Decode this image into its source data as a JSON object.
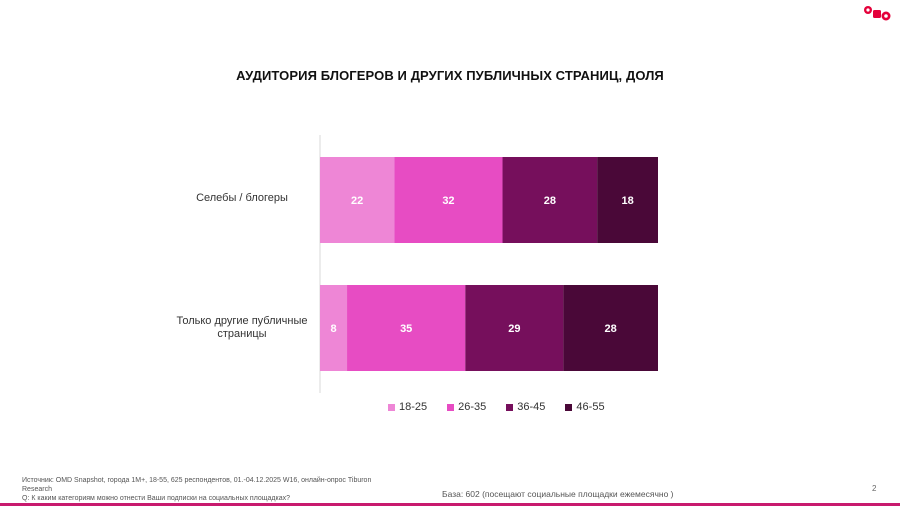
{
  "logo": {
    "text": "OMD",
    "color": "#e4003a"
  },
  "chart_data": {
    "type": "bar",
    "orientation": "horizontal",
    "stacked": true,
    "title": "АУДИТОРИЯ БЛОГЕРОВ И ДРУГИХ ПУБЛИЧНЫХ СТРАНИЦ, ДОЛЯ",
    "categories": [
      "Селебы / блогеры",
      "Только другие публичные страницы"
    ],
    "series": [
      {
        "name": "18-25",
        "values": [
          22,
          8
        ],
        "color": "#ee86d6"
      },
      {
        "name": "26-35",
        "values": [
          32,
          35
        ],
        "color": "#e74cc3"
      },
      {
        "name": "36-45",
        "values": [
          28,
          29
        ],
        "color": "#760f5c"
      },
      {
        "name": "46-55",
        "values": [
          18,
          28
        ],
        "color": "#4a0838"
      }
    ],
    "xlim": [
      0,
      100
    ],
    "legend": "bottom",
    "grid": false
  },
  "footer": {
    "source": "Источник: OMD Snapshot, города 1М+, 18-55, 625  респондентов, 01.-04.12.2025 W16, онлайн-опрос Tiburon Research",
    "question": "Q: К каким категориям можно отнести Ваши подписки на социальных площадках?",
    "base": "База: 602 (посещают социальные площадки ежемесячно )",
    "page": "2",
    "accent": "#c81a6e"
  }
}
